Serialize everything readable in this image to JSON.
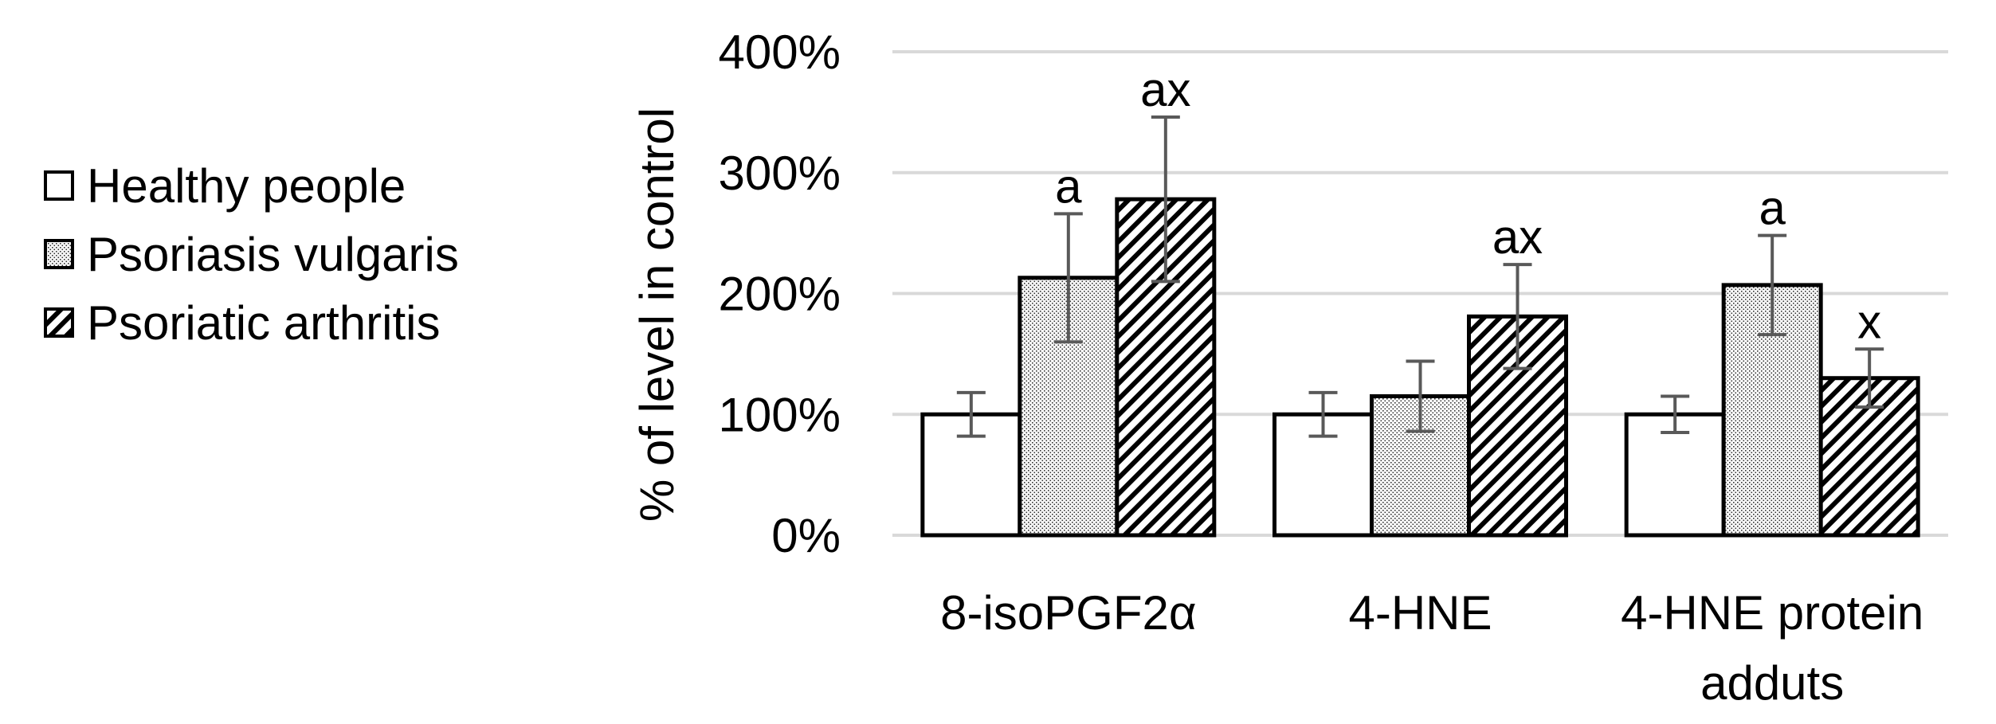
{
  "chart_data": {
    "type": "bar",
    "ylabel": "% of level in control",
    "xlabel": "",
    "categories": [
      "8-isoPGF2α",
      "4-HNE",
      "4-HNE protein adduts"
    ],
    "category_lines": [
      [
        "8-isoPGF2α"
      ],
      [
        "4-HNE"
      ],
      [
        "4-HNE protein",
        "adduts"
      ]
    ],
    "ylim": [
      0,
      400
    ],
    "yticks": [
      0,
      100,
      200,
      300,
      400
    ],
    "ytick_labels": [
      "0%",
      "100%",
      "200%",
      "300%",
      "400%"
    ],
    "grid": true,
    "legend_position": "left",
    "series": [
      {
        "name": "Healthy people",
        "pattern": "none",
        "values": [
          100,
          100,
          100
        ],
        "errors": [
          18,
          18,
          15
        ],
        "annotations": [
          "",
          "",
          ""
        ]
      },
      {
        "name": "Psoriasis vulgaris",
        "pattern": "dots",
        "values": [
          213,
          115,
          207
        ],
        "errors": [
          53,
          29,
          41
        ],
        "annotations": [
          "a",
          "",
          "a"
        ]
      },
      {
        "name": "Psoriatic arthritis",
        "pattern": "hatch",
        "values": [
          278,
          181,
          130
        ],
        "errors": [
          68,
          43,
          24
        ],
        "annotations": [
          "ax",
          "ax",
          "x"
        ]
      }
    ],
    "colors": {
      "bar_fill": "#ffffff",
      "bar_stroke": "#000000",
      "error_bar": "#595959",
      "grid": "#d9d9d9",
      "text": "#000000"
    }
  }
}
